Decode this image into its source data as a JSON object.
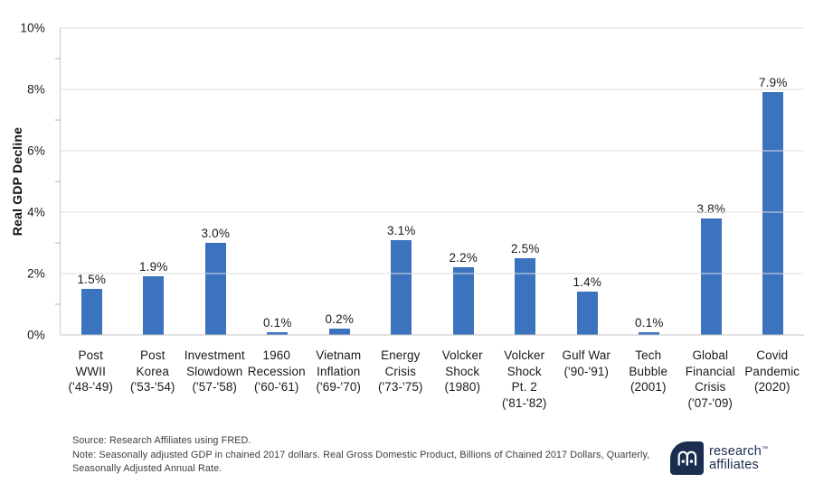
{
  "chart_data": {
    "type": "bar",
    "title": "",
    "xlabel": "",
    "ylabel": "Real GDP Decline",
    "ylim": [
      0,
      10
    ],
    "y_ticks_display": [
      "10%",
      "8%",
      "6%",
      "4%",
      "2%",
      "0%"
    ],
    "grid": "horizontal gridlines at 2% intervals, minor axis ticks at 1% intervals",
    "legend": "none",
    "bar_color": "#3b73bf",
    "categories": [
      "Post WWII ('48-'49)",
      "Post Korea ('53-'54)",
      "Investment Slowdown ('57-'58)",
      "1960 Recession ('60-'61)",
      "Vietnam Inflation ('69-'70)",
      "Energy Crisis ('73-'75)",
      "Volcker Shock (1980)",
      "Volcker Shock Pt. 2 ('81-'82)",
      "Gulf War ('90-'91)",
      "Tech Bubble (2001)",
      "Global Financial Crisis ('07-'09)",
      "Covid Pandemic (2020)"
    ],
    "category_lines": [
      [
        "Post",
        "WWII",
        "('48-'49)"
      ],
      [
        "Post",
        "Korea",
        "('53-'54)"
      ],
      [
        "Investment",
        "Slowdown",
        "('57-'58)"
      ],
      [
        "1960",
        "Recession",
        "('60-'61)"
      ],
      [
        "Vietnam",
        "Inflation",
        "('69-'70)"
      ],
      [
        "Energy",
        "Crisis",
        "('73-'75)"
      ],
      [
        "Volcker",
        "Shock",
        "(1980)"
      ],
      [
        "Volcker",
        "Shock",
        "Pt. 2",
        "('81-'82)"
      ],
      [
        "Gulf War",
        "('90-'91)"
      ],
      [
        "Tech",
        "Bubble",
        "(2001)"
      ],
      [
        "Global",
        "Financial",
        "Crisis",
        "('07-'09)"
      ],
      [
        "Covid",
        "Pandemic",
        "(2020)"
      ]
    ],
    "values": [
      1.5,
      1.9,
      3.0,
      0.1,
      0.2,
      3.1,
      2.2,
      2.5,
      1.4,
      0.1,
      3.8,
      7.9
    ],
    "value_labels": [
      "1.5%",
      "1.9%",
      "3.0%",
      "0.1%",
      "0.2%",
      "3.1%",
      "2.2%",
      "2.5%",
      "1.4%",
      "0.1%",
      "3.8%",
      "7.9%"
    ]
  },
  "footer": {
    "lines": [
      "Source: Research Affiliates using FRED.",
      "Note: Seasonally adjusted GDP in chained 2017 dollars. Real Gross Domestic Product, Billions of Chained 2017 Dollars, Quarterly,",
      "Seasonally Adjusted Annual Rate."
    ]
  },
  "branding": {
    "logo_line1": "research",
    "logo_trademark": "™",
    "logo_line2": "affiliates",
    "logo_color": "#1b2d50"
  }
}
